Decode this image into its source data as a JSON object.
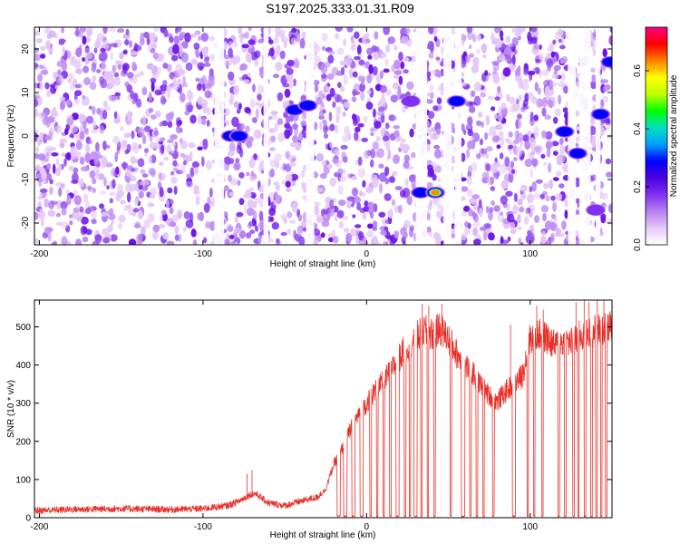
{
  "title": "S197.2025.333.01.31.R09",
  "chart_data": [
    {
      "type": "heatmap",
      "xlabel": "Height of straight line (km)",
      "ylabel": "Frequency (Hz)",
      "xlim": [
        -203,
        150
      ],
      "ylim": [
        -25,
        25
      ],
      "xticks": [
        -200,
        -100,
        0,
        100
      ],
      "yticks": [
        -20,
        -10,
        0,
        10,
        20
      ],
      "colorbar": {
        "label": "Normalized spectral amplitude",
        "range": [
          0,
          0.75
        ],
        "ticks": [
          "0.0",
          "0.2",
          "0.4",
          "0.6"
        ],
        "colormap": [
          "#ffffff",
          "#e8c8f8",
          "#b880f0",
          "#8030f0",
          "#4a00e0",
          "#0000ff",
          "#00a0ff",
          "#00e0c0",
          "#00ff00",
          "#c0ff00",
          "#ffff00",
          "#ff8000",
          "#ff0000",
          "#ff0080"
        ]
      },
      "blank_gaps_km": [
        [
          -93,
          -87
        ],
        [
          -63,
          -60
        ],
        [
          -37,
          -32
        ],
        [
          30,
          37
        ],
        [
          47,
          52
        ],
        [
          54,
          58
        ],
        [
          123,
          128
        ],
        [
          130,
          137
        ],
        [
          140,
          143
        ]
      ],
      "hotspots": [
        {
          "x": -83,
          "y": 0,
          "value": 0.4
        },
        {
          "x": -78,
          "y": 0,
          "value": 0.38
        },
        {
          "x": -44,
          "y": 6,
          "value": 0.3
        },
        {
          "x": -36,
          "y": 7,
          "value": 0.38
        },
        {
          "x": 27,
          "y": 8,
          "value": 0.25
        },
        {
          "x": 33,
          "y": -13,
          "value": 0.35
        },
        {
          "x": 42,
          "y": -13,
          "value": 0.72
        },
        {
          "x": 55,
          "y": 8,
          "value": 0.3
        },
        {
          "x": 121,
          "y": 1,
          "value": 0.3
        },
        {
          "x": 129,
          "y": -4,
          "value": 0.35
        },
        {
          "x": 140,
          "y": -17,
          "value": 0.25
        },
        {
          "x": 143,
          "y": 5,
          "value": 0.35
        },
        {
          "x": 149,
          "y": 17,
          "value": 0.3
        }
      ]
    },
    {
      "type": "line",
      "xlabel": "Height of straight line (km)",
      "ylabel": "SNR (10 * v/v)",
      "xlim": [
        -203,
        150
      ],
      "ylim": [
        0,
        570
      ],
      "xticks": [
        -200,
        -100,
        0,
        100
      ],
      "yticks": [
        0,
        100,
        200,
        300,
        400,
        500
      ],
      "series": [
        {
          "color": "#e8302a",
          "envelope": [
            [
              -203,
              15
            ],
            [
              -180,
              18
            ],
            [
              -150,
              20
            ],
            [
              -120,
              18
            ],
            [
              -100,
              20
            ],
            [
              -85,
              28
            ],
            [
              -78,
              40
            ],
            [
              -72,
              55
            ],
            [
              -68,
              60
            ],
            [
              -60,
              35
            ],
            [
              -50,
              28
            ],
            [
              -40,
              40
            ],
            [
              -30,
              50
            ],
            [
              -25,
              75
            ],
            [
              -20,
              140
            ],
            [
              -15,
              180
            ],
            [
              -10,
              230
            ],
            [
              -5,
              270
            ],
            [
              0,
              300
            ],
            [
              5,
              330
            ],
            [
              10,
              355
            ],
            [
              15,
              385
            ],
            [
              20,
              420
            ],
            [
              25,
              450
            ],
            [
              30,
              470
            ],
            [
              35,
              490
            ],
            [
              40,
              480
            ],
            [
              45,
              495
            ],
            [
              50,
              470
            ],
            [
              55,
              430
            ],
            [
              60,
              400
            ],
            [
              65,
              380
            ],
            [
              70,
              345
            ],
            [
              75,
              320
            ],
            [
              80,
              305
            ],
            [
              85,
              330
            ],
            [
              90,
              350
            ],
            [
              95,
              370
            ],
            [
              100,
              470
            ],
            [
              105,
              480
            ],
            [
              110,
              470
            ],
            [
              115,
              450
            ],
            [
              120,
              460
            ],
            [
              125,
              460
            ],
            [
              130,
              475
            ],
            [
              135,
              480
            ],
            [
              140,
              490
            ],
            [
              145,
              495
            ],
            [
              150,
              500
            ]
          ],
          "dropout_gaps_km": [
            [
              -18,
              -16
            ],
            [
              -14,
              -12
            ],
            [
              -9,
              -7
            ],
            [
              -4,
              -2
            ],
            [
              2,
              3
            ],
            [
              6,
              7
            ],
            [
              10,
              11
            ],
            [
              14,
              15
            ],
            [
              18,
              20
            ],
            [
              23,
              24
            ],
            [
              26,
              27
            ],
            [
              29,
              31
            ],
            [
              33,
              34
            ],
            [
              37,
              38
            ],
            [
              41,
              42
            ],
            [
              51,
              52
            ],
            [
              58,
              60
            ],
            [
              63,
              64
            ],
            [
              67,
              68
            ],
            [
              71,
              72
            ],
            [
              77,
              78
            ],
            [
              89,
              91
            ],
            [
              98,
              99
            ],
            [
              102,
              103
            ],
            [
              107,
              108
            ],
            [
              117,
              118
            ],
            [
              121,
              122
            ],
            [
              126,
              127
            ],
            [
              129,
              130
            ],
            [
              133,
              134
            ],
            [
              137,
              138
            ],
            [
              140,
              141
            ],
            [
              143,
              144
            ],
            [
              146,
              147
            ]
          ],
          "spikes": [
            [
              -73,
              115
            ],
            [
              -70,
              125
            ],
            [
              34,
              560
            ],
            [
              38,
              555
            ],
            [
              46,
              560
            ],
            [
              88,
              505
            ],
            [
              104,
              555
            ],
            [
              108,
              545
            ],
            [
              128,
              565
            ],
            [
              133,
              570
            ],
            [
              136,
              565
            ],
            [
              141,
              570
            ],
            [
              145,
              570
            ]
          ]
        }
      ]
    }
  ]
}
